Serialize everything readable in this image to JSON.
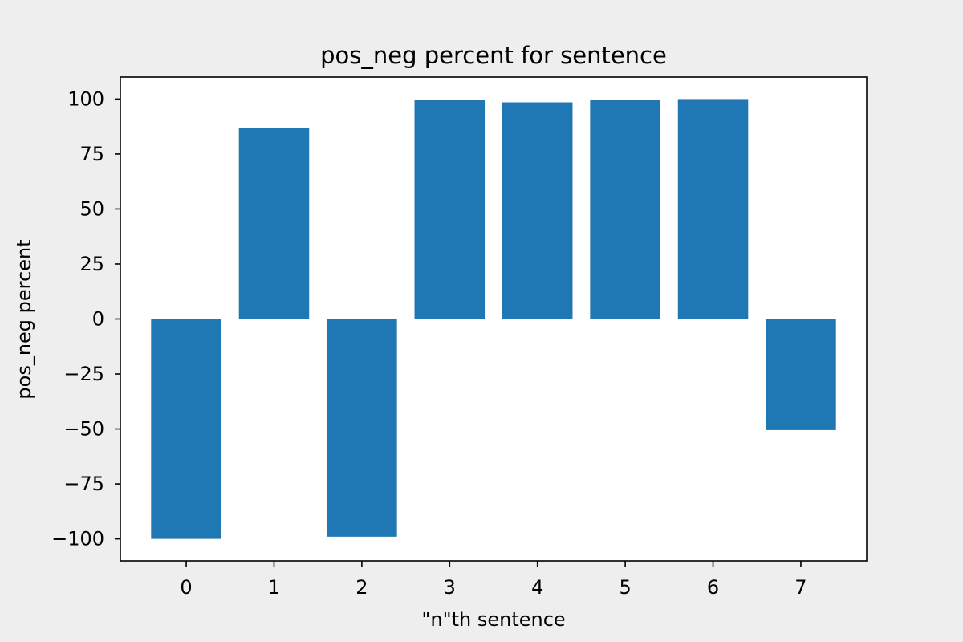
{
  "chart_data": {
    "type": "bar",
    "title": "pos_neg percent for sentence",
    "xlabel": "\"n\"th sentence",
    "ylabel": "pos_neg percent",
    "categories": [
      "0",
      "1",
      "2",
      "3",
      "4",
      "5",
      "6",
      "7"
    ],
    "values": [
      -100,
      87,
      -99,
      99.5,
      98.5,
      99.5,
      100,
      -50.5
    ],
    "xlim": [
      -0.75,
      7.75
    ],
    "ylim": [
      -110,
      110
    ],
    "yticks": [
      100,
      75,
      50,
      25,
      0,
      -25,
      -50,
      -75,
      -100
    ],
    "ytick_labels": [
      "100",
      "75",
      "50",
      "25",
      "0",
      "−25",
      "−50",
      "−75",
      "−100"
    ],
    "grid": false,
    "legend": "none",
    "bar_color": "#1f77b4"
  },
  "colors": {
    "figure_background": "#eeeeee",
    "plot_background": "#ffffff",
    "axis": "#000000"
  }
}
